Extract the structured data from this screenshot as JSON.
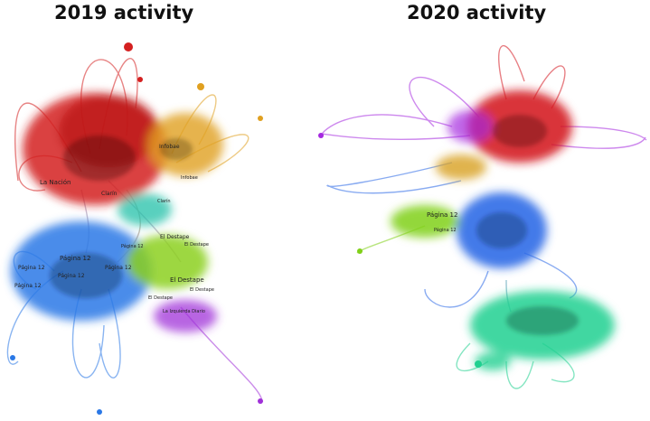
{
  "panels": [
    {
      "id": "2019",
      "title": "2019 activity",
      "clusters": [
        {
          "name": "red",
          "color": "#d42020"
        },
        {
          "name": "orange",
          "color": "#e0a020"
        },
        {
          "name": "teal",
          "color": "#20c0a8"
        },
        {
          "name": "blue",
          "color": "#2a78e6"
        },
        {
          "name": "green",
          "color": "#8cd020"
        },
        {
          "name": "purple",
          "color": "#a030d8"
        }
      ],
      "labels": [
        "La Nación",
        "Clarín",
        "Infobae",
        "Infobae",
        "Clarín",
        "Página 12",
        "Página 12",
        "Página 12",
        "Página 12",
        "Página 12",
        "Página 12",
        "El Destape",
        "El Destape",
        "El Destape",
        "El Destape",
        "El Destape",
        "La Izquierda Diario"
      ]
    },
    {
      "id": "2020",
      "title": "2020 activity",
      "clusters": [
        {
          "name": "red",
          "color": "#d41820"
        },
        {
          "name": "purple",
          "color": "#a528e0"
        },
        {
          "name": "orange",
          "color": "#d8a020"
        },
        {
          "name": "blue",
          "color": "#2a68e6"
        },
        {
          "name": "green",
          "color": "#80d018"
        },
        {
          "name": "mint",
          "color": "#20d090"
        }
      ],
      "labels": [
        "Página 12",
        "Página 12"
      ]
    }
  ]
}
